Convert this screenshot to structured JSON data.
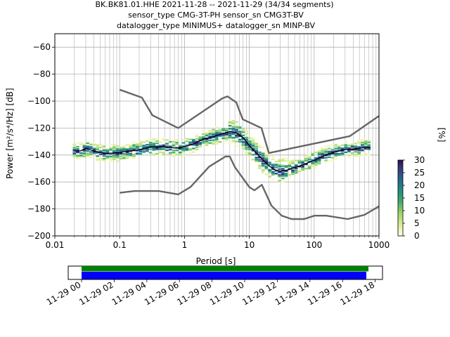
{
  "title": {
    "line1": "BK.BK81.01.HHE   2021-11-28 -- 2021-11-29  (34/34 segments)",
    "line2": "sensor_type CMG-3T-PH sensor_sn CMG3T-BV",
    "line3": "datalogger_type MINIMUS+ datalogger_sn MINP-BV"
  },
  "chart_data": [
    {
      "type": "heatmap",
      "xlabel": "Period [s]",
      "ylabel": "Power [m²/s⁴/Hz] [dB]",
      "x_scale": "log",
      "xlim": [
        0.01,
        1000
      ],
      "ylim": [
        -200,
        -50
      ],
      "x_ticks": [
        0.01,
        0.1,
        1,
        10,
        100,
        1000
      ],
      "x_tick_labels": [
        "0.01",
        "0.1",
        "1",
        "10",
        "100",
        "1000"
      ],
      "y_ticks": [
        -200,
        -180,
        -160,
        -140,
        -120,
        -100,
        -80,
        -60
      ],
      "y_tick_labels": [
        "−200",
        "−180",
        "−160",
        "−140",
        "−120",
        "−100",
        "−80",
        "−60"
      ],
      "grid": true,
      "series": [
        {
          "name": "",
          "role": "new-high-noise-model",
          "color": "#666666",
          "x": [
            0.1,
            0.22,
            0.32,
            0.8,
            3.8,
            4.6,
            6.3,
            7.9,
            15.4,
            20,
            354.8,
            1000
          ],
          "y": [
            -91.5,
            -97.4,
            -110.5,
            -120,
            -98,
            -96.5,
            -101,
            -113.5,
            -120,
            -138.5,
            -126,
            -111
          ]
        },
        {
          "name": "",
          "role": "new-low-noise-model",
          "color": "#666666",
          "x": [
            0.1,
            0.17,
            0.4,
            0.8,
            1.24,
            2.4,
            4.3,
            5,
            6,
            10,
            12,
            15.6,
            21.9,
            31.6,
            45,
            70,
            101,
            154,
            328,
            600,
            1000
          ],
          "y": [
            -168,
            -166.7,
            -166.7,
            -169.2,
            -163.7,
            -148.6,
            -141.1,
            -141.1,
            -149,
            -163.8,
            -166.2,
            -162.1,
            -177.5,
            -185,
            -187.5,
            -187.5,
            -185,
            -185,
            -187.5,
            -184.4,
            -178
          ]
        },
        {
          "name": "",
          "role": "mean-psd",
          "color": "#000000",
          "x": [
            0.02,
            0.025,
            0.03,
            0.04,
            0.06,
            0.1,
            0.15,
            0.2,
            0.3,
            0.5,
            0.8,
            1,
            1.5,
            2,
            3,
            4,
            5,
            6,
            8,
            10,
            15,
            20,
            25,
            30,
            40,
            60,
            100,
            150,
            200,
            300,
            500,
            700
          ],
          "y": [
            -137,
            -137,
            -135,
            -137,
            -139,
            -138,
            -137,
            -136,
            -134,
            -134,
            -135,
            -134,
            -131,
            -128,
            -126,
            -124,
            -122.5,
            -123,
            -127,
            -133,
            -142,
            -148,
            -151,
            -152,
            -151,
            -148,
            -144,
            -140,
            -138,
            -136,
            -135,
            -134
          ]
        }
      ],
      "colorbar": {
        "label": "[%]",
        "min": 0,
        "max": 30,
        "ticks": [
          0,
          5,
          10,
          15,
          20,
          25,
          30
        ],
        "colormap": "pqlx-like (white-yellow-green-blue-purple)"
      }
    },
    {
      "type": "timeline",
      "x_tick_labels": [
        "11-29 00",
        "11-29 02",
        "11-29 04",
        "11-29 06",
        "11-29 08",
        "11-29 10",
        "11-29 12",
        "11-29 14",
        "11-29 16",
        "11-29 18"
      ],
      "bars": [
        {
          "color": "#008000",
          "start_hour": 0,
          "end_hour": 17.6
        },
        {
          "color": "#0000ff",
          "start_hour": 0,
          "end_hour": 17.4
        }
      ]
    }
  ]
}
